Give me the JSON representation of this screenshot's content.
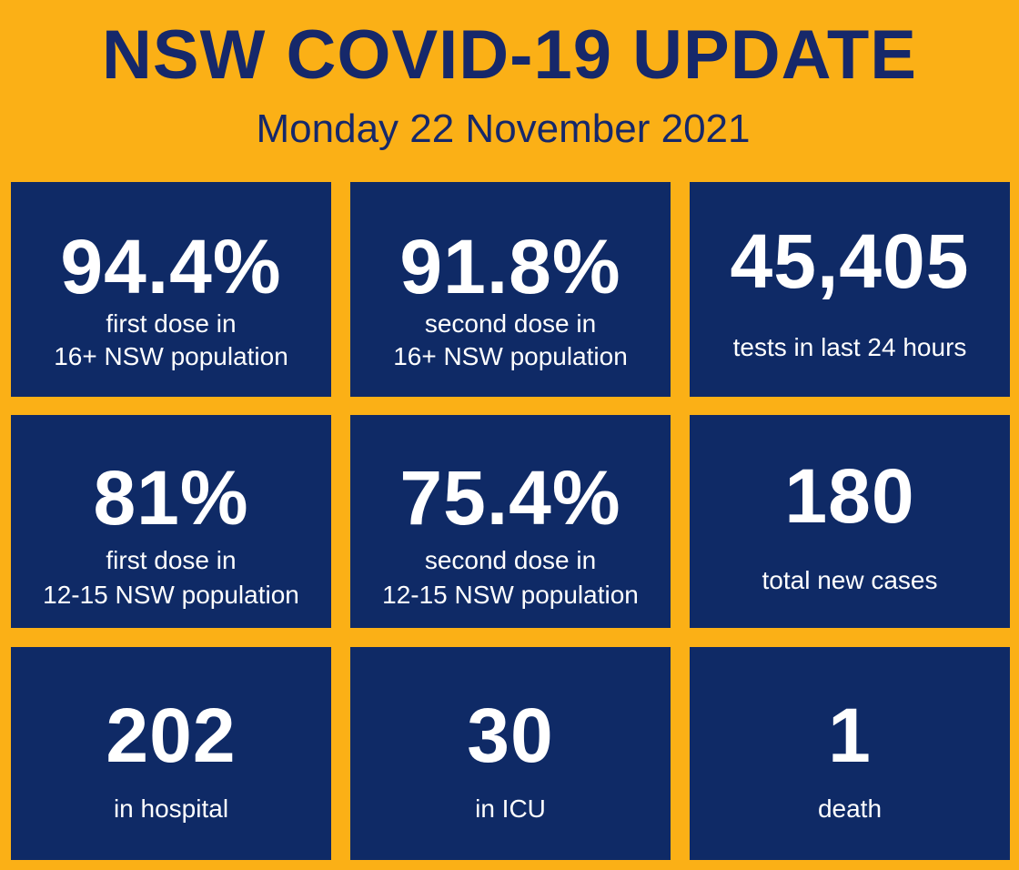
{
  "header": {
    "title": "NSW COVID-19 UPDATE",
    "date": "Monday 22 November 2021"
  },
  "tiles": [
    {
      "value": "94.4%",
      "label_line1": "first dose in",
      "label_line2": "16+ NSW population"
    },
    {
      "value": "91.8%",
      "label_line1": "second dose in",
      "label_line2": "16+ NSW population"
    },
    {
      "value": "45,405",
      "label_line1": "tests in last 24 hours"
    },
    {
      "value": "81%",
      "label_line1": "first dose in",
      "label_line2": "12-15 NSW population"
    },
    {
      "value": "75.4%",
      "label_line1": "second dose in",
      "label_line2": "12-15 NSW population"
    },
    {
      "value": "180",
      "label_line1": "total new cases"
    },
    {
      "value": "202",
      "label_line1": "in hospital"
    },
    {
      "value": "30",
      "label_line1": "in ICU"
    },
    {
      "value": "1",
      "label_line1": "death"
    }
  ],
  "colors": {
    "background": "#FBB016",
    "tile": "#0F2A66",
    "title_text": "#16286A",
    "tile_text": "#FFFFFF"
  }
}
